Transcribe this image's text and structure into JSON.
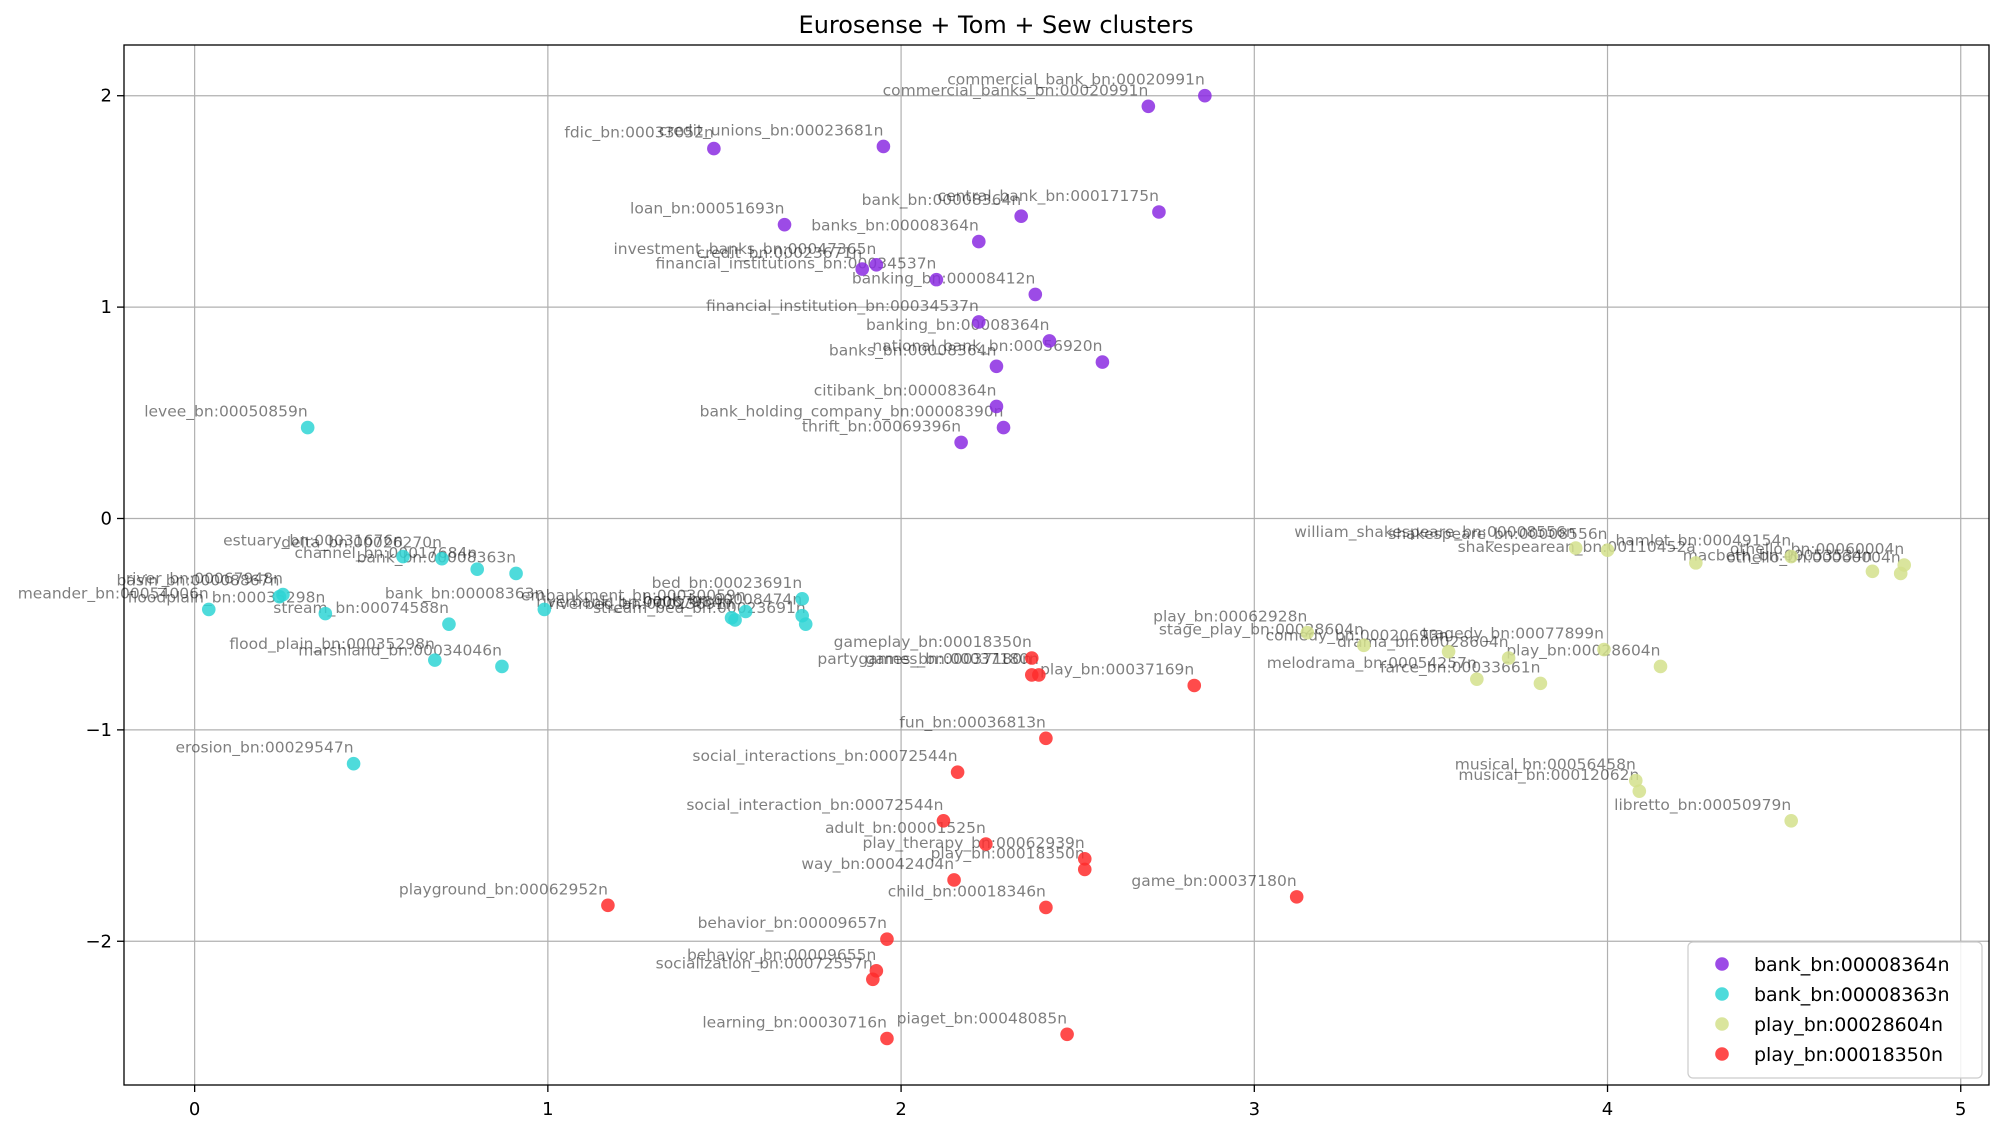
{
  "chart_data": {
    "type": "scatter",
    "title": "Eurosense + Tom + Sew clusters",
    "xlabel": "",
    "ylabel": "",
    "xlim": [
      -0.2,
      5.08
    ],
    "ylim": [
      -2.68,
      2.24
    ],
    "xticks": [
      0,
      1,
      2,
      3,
      4,
      5
    ],
    "yticks": [
      -2,
      -1,
      0,
      1,
      2
    ],
    "ytick_labels": [
      "−2",
      "−1",
      "0",
      "1",
      "2"
    ],
    "grid": true,
    "legend_position": "lower-right",
    "series": [
      {
        "name": "bank_bn:00008364n",
        "color": "#8b2be2",
        "points": [
          {
            "x": 2.86,
            "y": 2.0,
            "label": "commercial_bank_bn:00020991n"
          },
          {
            "x": 2.7,
            "y": 1.95,
            "label": "commercial_banks_bn:00020991n"
          },
          {
            "x": 1.47,
            "y": 1.75,
            "label": "fdic_bn:00033052n"
          },
          {
            "x": 1.95,
            "y": 1.76,
            "label": "credit_unions_bn:00023681n"
          },
          {
            "x": 2.34,
            "y": 1.43,
            "label": "bank_bn:00008364n"
          },
          {
            "x": 2.73,
            "y": 1.45,
            "label": "central_bank_bn:00017175n"
          },
          {
            "x": 1.67,
            "y": 1.39,
            "label": "loan_bn:00051693n"
          },
          {
            "x": 2.22,
            "y": 1.31,
            "label": "banks_bn:00008364n"
          },
          {
            "x": 1.93,
            "y": 1.2,
            "label": "investment_banks_bn:00047365n"
          },
          {
            "x": 1.89,
            "y": 1.18,
            "label": "credit_bn:00023671n"
          },
          {
            "x": 2.1,
            "y": 1.13,
            "label": "financial_institutions_bn:00034537n"
          },
          {
            "x": 2.38,
            "y": 1.06,
            "label": "banking_bn:00008412n"
          },
          {
            "x": 2.22,
            "y": 0.93,
            "label": "financial_institution_bn:00034537n"
          },
          {
            "x": 2.42,
            "y": 0.84,
            "label": "banking_bn:00008364n"
          },
          {
            "x": 2.57,
            "y": 0.74,
            "label": "national_bank_bn:00056920n"
          },
          {
            "x": 2.27,
            "y": 0.72,
            "label": "banks_bn:00008364n"
          },
          {
            "x": 2.27,
            "y": 0.53,
            "label": "citibank_bn:00008364n"
          },
          {
            "x": 2.29,
            "y": 0.43,
            "label": "bank_holding_company_bn:00008390n"
          },
          {
            "x": 2.17,
            "y": 0.36,
            "label": "thrift_bn:00069396n"
          }
        ]
      },
      {
        "name": "bank_bn:00008363n",
        "color": "#2fd5d5",
        "points": [
          {
            "x": 0.32,
            "y": 0.43,
            "label": "levee_bn:00050859n"
          },
          {
            "x": 0.24,
            "y": -0.37,
            "label": "basin_bn:00008867n"
          },
          {
            "x": 0.59,
            "y": -0.18,
            "label": "estuary_bn:00031676n"
          },
          {
            "x": 0.7,
            "y": -0.19,
            "label": "delta_bn:00026270n"
          },
          {
            "x": 0.8,
            "y": -0.24,
            "label": "channel_bn:00017684n"
          },
          {
            "x": 0.91,
            "y": -0.26,
            "label": "bank_bn:00008363n"
          },
          {
            "x": 0.04,
            "y": -0.43,
            "label": "meander_bn:00054006n"
          },
          {
            "x": 0.37,
            "y": -0.45,
            "label": "floodplain_bn:00035298n"
          },
          {
            "x": 0.25,
            "y": -0.36,
            "label": "river_bn:00067948n"
          },
          {
            "x": 0.72,
            "y": -0.5,
            "label": "stream_bn:00074588n"
          },
          {
            "x": 0.99,
            "y": -0.43,
            "label": "bank_bn:00008363n"
          },
          {
            "x": 1.52,
            "y": -0.47,
            "label": "riverbank_bn:00067964n"
          },
          {
            "x": 1.56,
            "y": -0.44,
            "label": "embankment_bn:00030059n"
          },
          {
            "x": 1.72,
            "y": -0.38,
            "label": "bed_bn:00023691n"
          },
          {
            "x": 1.72,
            "y": -0.46,
            "label": "bank_bn:00008474n"
          },
          {
            "x": 1.73,
            "y": -0.5,
            "label": "stream_bed_bn:00023691n"
          },
          {
            "x": 1.53,
            "y": -0.48,
            "label": "riverbed_bn:00023691n"
          },
          {
            "x": 0.68,
            "y": -0.67,
            "label": "flood_plain_bn:00035298n"
          },
          {
            "x": 0.87,
            "y": -0.7,
            "label": "marshland_bn:00034046n"
          },
          {
            "x": 0.45,
            "y": -1.16,
            "label": "erosion_bn:00029547n"
          }
        ]
      },
      {
        "name": "play_bn:00028604n",
        "color": "#d4e08c",
        "points": [
          {
            "x": 3.91,
            "y": -0.14,
            "label": "william_shakespeare_bn:00008556n"
          },
          {
            "x": 4.0,
            "y": -0.15,
            "label": "shakespeare_bn:00008556n"
          },
          {
            "x": 4.25,
            "y": -0.21,
            "label": "shakespearean_bn:00110452a"
          },
          {
            "x": 4.52,
            "y": -0.18,
            "label": "hamlet_bn:00049154n"
          },
          {
            "x": 4.75,
            "y": -0.25,
            "label": "macbeth_bn:00053534n"
          },
          {
            "x": 4.83,
            "y": -0.26,
            "label": "othello_bn:00060004n"
          },
          {
            "x": 4.84,
            "y": -0.22,
            "label": "othello_bn:00060004n"
          },
          {
            "x": 3.15,
            "y": -0.54,
            "label": "play_bn:00062928n"
          },
          {
            "x": 3.31,
            "y": -0.6,
            "label": "stage_play_bn:00028604n"
          },
          {
            "x": 3.55,
            "y": -0.63,
            "label": "comedy_bn:00020693n"
          },
          {
            "x": 3.72,
            "y": -0.66,
            "label": "drama_bn:00028604n"
          },
          {
            "x": 3.99,
            "y": -0.62,
            "label": "tragedy_bn:00077899n"
          },
          {
            "x": 4.15,
            "y": -0.7,
            "label": "play_bn:00028604n"
          },
          {
            "x": 3.63,
            "y": -0.76,
            "label": "melodrama_bn:00054257n"
          },
          {
            "x": 3.81,
            "y": -0.78,
            "label": "farce_bn:00033661n"
          },
          {
            "x": 4.08,
            "y": -1.24,
            "label": "musical_bn:00056458n"
          },
          {
            "x": 4.09,
            "y": -1.29,
            "label": "musical_bn:00012062n"
          },
          {
            "x": 4.52,
            "y": -1.43,
            "label": "libretto_bn:00050979n"
          }
        ]
      },
      {
        "name": "play_bn:00018350n",
        "color": "#ff2b2b",
        "points": [
          {
            "x": 2.37,
            "y": -0.66,
            "label": "gameplay_bn:00018350n"
          },
          {
            "x": 2.37,
            "y": -0.74,
            "label": "partygames_bn:00037180n"
          },
          {
            "x": 2.39,
            "y": -0.74,
            "label": "games_bn:00037180n"
          },
          {
            "x": 2.83,
            "y": -0.79,
            "label": "play_bn:00037169n"
          },
          {
            "x": 2.41,
            "y": -1.04,
            "label": "fun_bn:00036813n"
          },
          {
            "x": 2.16,
            "y": -1.2,
            "label": "social_interactions_bn:00072544n"
          },
          {
            "x": 2.12,
            "y": -1.43,
            "label": "social_interaction_bn:00072544n"
          },
          {
            "x": 2.24,
            "y": -1.54,
            "label": "adult_bn:00001525n"
          },
          {
            "x": 2.52,
            "y": -1.61,
            "label": "play_therapy_bn:00062939n"
          },
          {
            "x": 2.52,
            "y": -1.66,
            "label": "play_bn:00018350n"
          },
          {
            "x": 2.15,
            "y": -1.71,
            "label": "way_bn:00042404n"
          },
          {
            "x": 1.17,
            "y": -1.83,
            "label": "playground_bn:00062952n"
          },
          {
            "x": 2.41,
            "y": -1.84,
            "label": "child_bn:00018346n"
          },
          {
            "x": 3.12,
            "y": -1.79,
            "label": "game_bn:00037180n"
          },
          {
            "x": 1.96,
            "y": -1.99,
            "label": "behavior_bn:00009657n"
          },
          {
            "x": 1.93,
            "y": -2.14,
            "label": "behavior_bn:00009655n"
          },
          {
            "x": 1.92,
            "y": -2.18,
            "label": "socialization_bn:00072557n"
          },
          {
            "x": 1.96,
            "y": -2.46,
            "label": "learning_bn:00030716n"
          },
          {
            "x": 2.47,
            "y": -2.44,
            "label": "piaget_bn:00048085n"
          }
        ]
      }
    ]
  }
}
